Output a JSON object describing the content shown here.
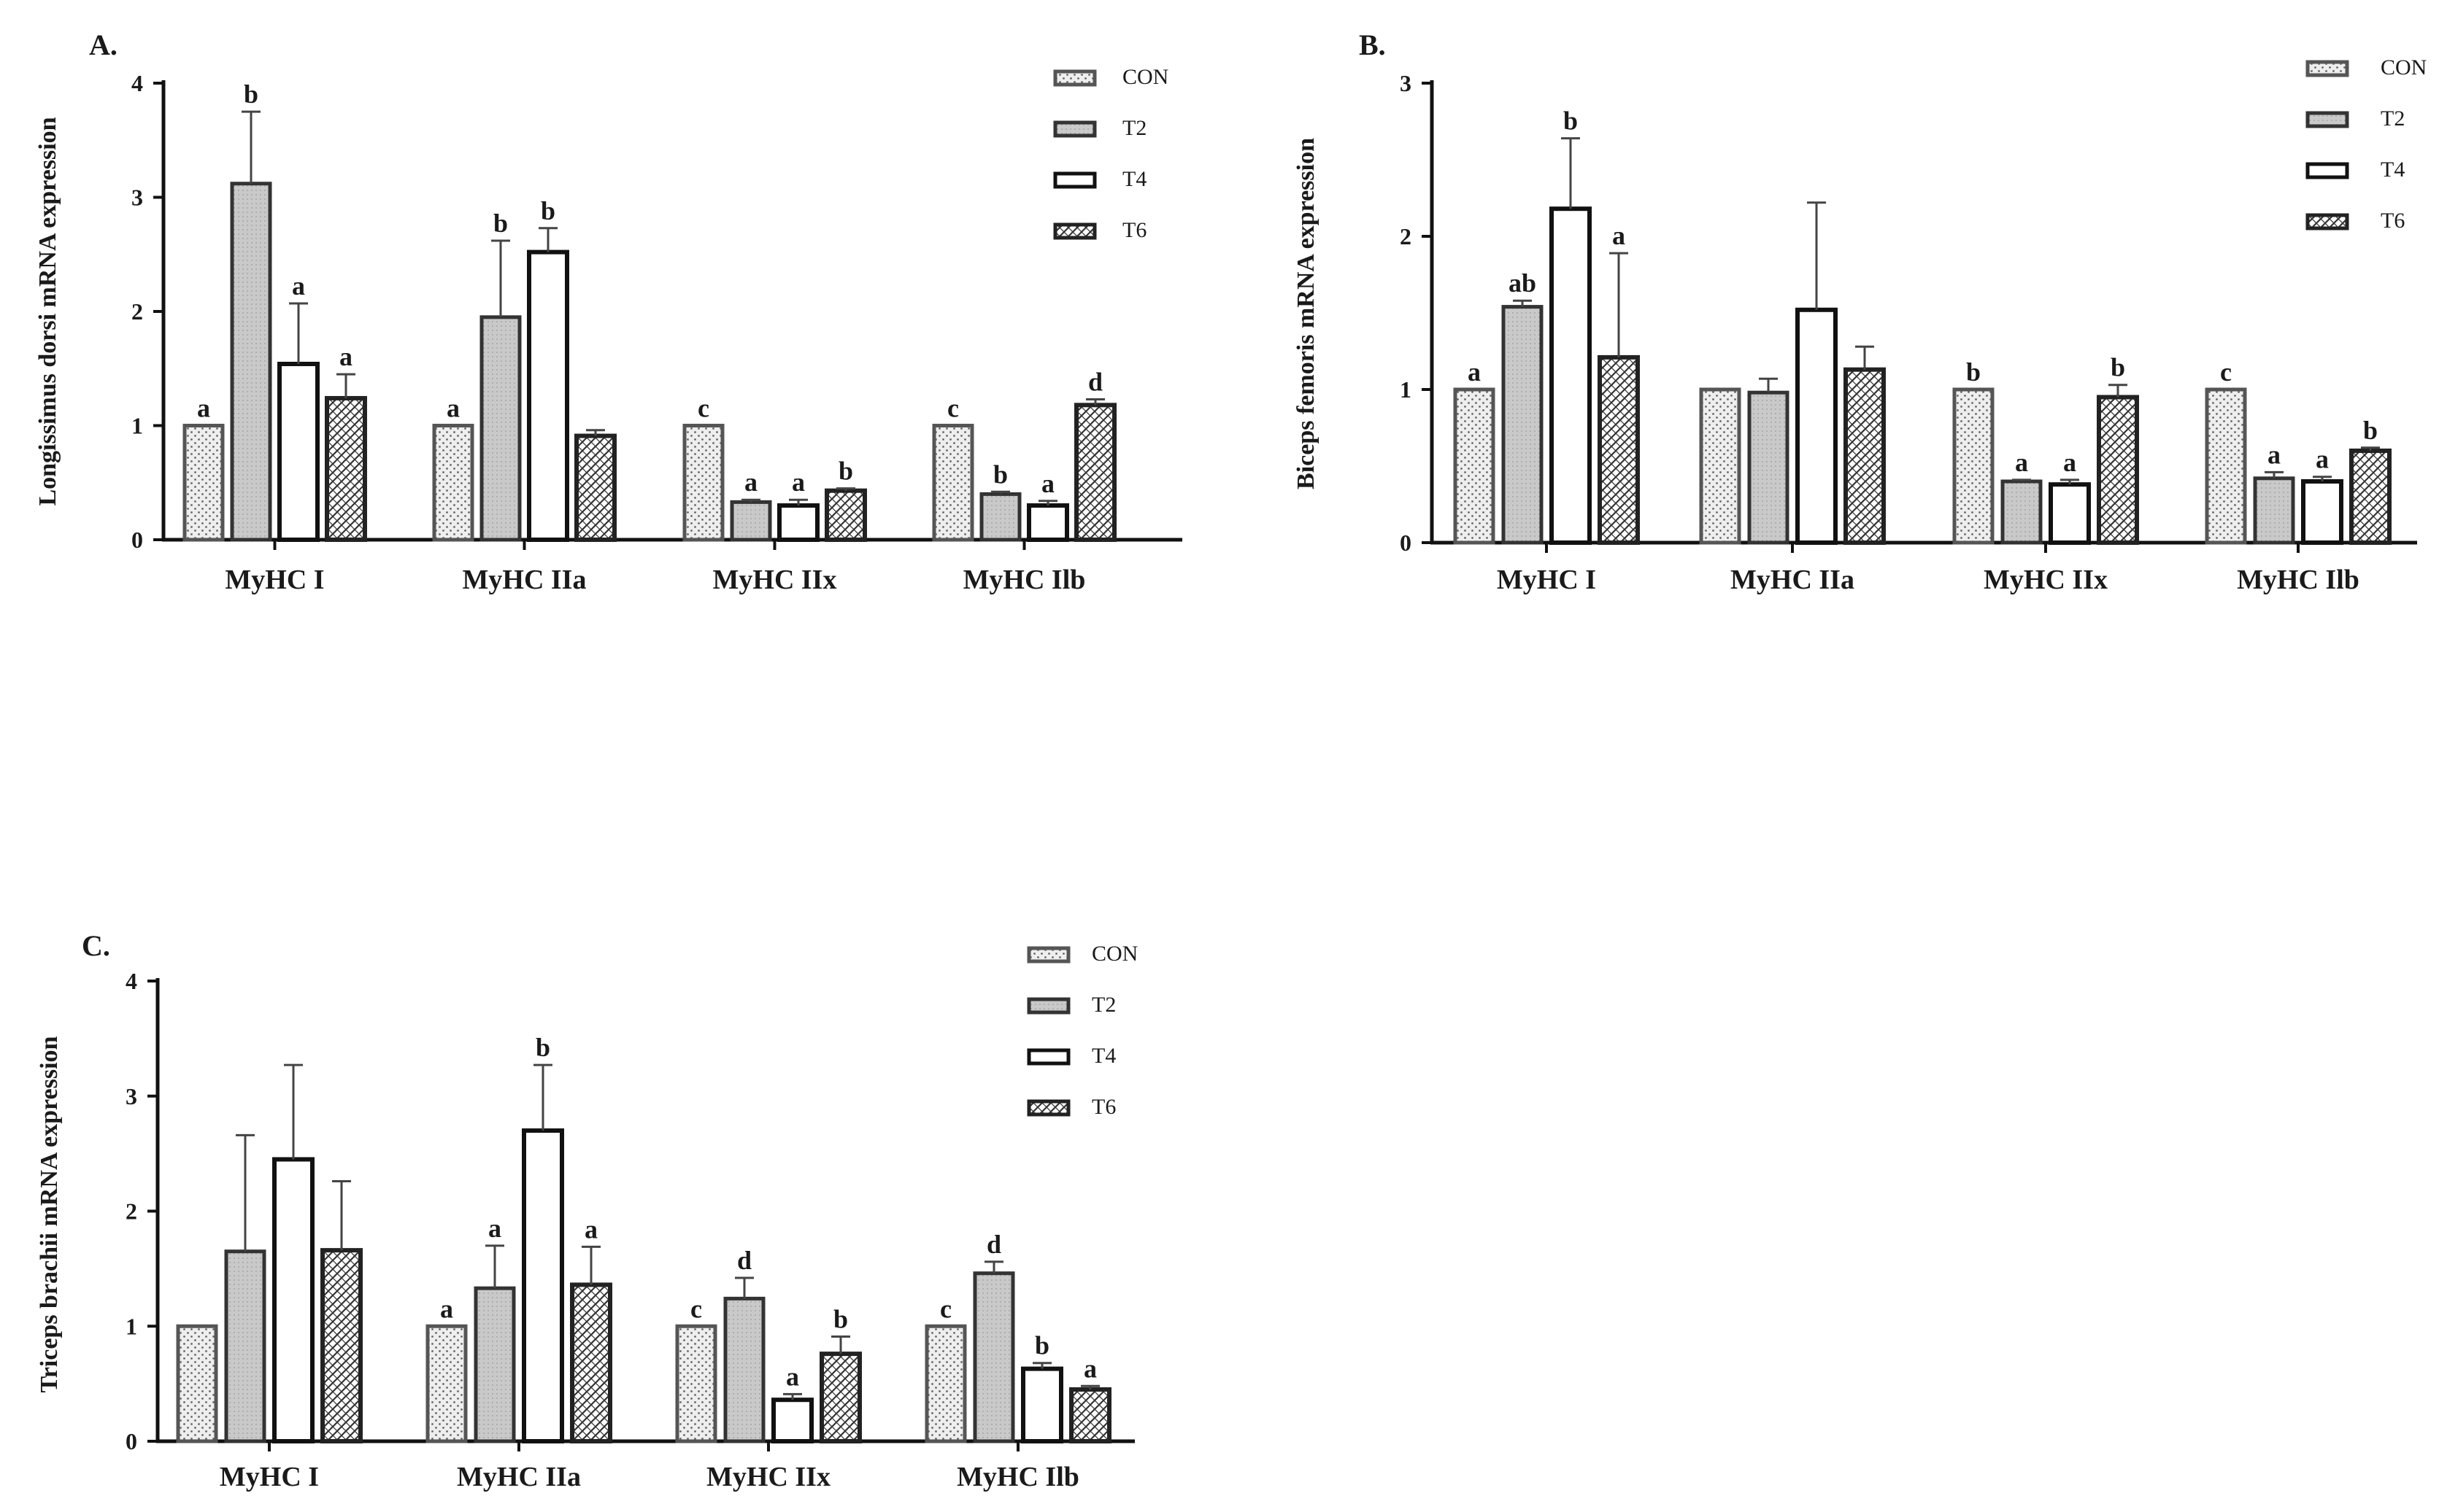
{
  "chart_data": [
    {
      "type": "bar",
      "panel_label": "A.",
      "ylabel": "Longissimus dorsi mRNA expression",
      "xlabel": "",
      "ylim": [
        0,
        4
      ],
      "yticks": [
        "0",
        "1",
        "2",
        "3",
        "4"
      ],
      "categories": [
        "MyHC I",
        "MyHC IIa",
        "MyHC IIx",
        "MyHC Ilb"
      ],
      "series": [
        {
          "name": "CON",
          "pattern": "dots",
          "values": [
            1.0,
            1.0,
            1.0,
            1.0
          ],
          "errors": [
            0,
            0,
            0,
            0
          ],
          "letters": [
            "a",
            "a",
            "c",
            "c"
          ]
        },
        {
          "name": "T2",
          "pattern": "gray",
          "values": [
            3.12,
            1.95,
            0.33,
            0.4
          ],
          "errors": [
            0.63,
            0.67,
            0.02,
            0.02
          ],
          "letters": [
            "b",
            "b",
            "a",
            "b"
          ]
        },
        {
          "name": "T4",
          "pattern": "white",
          "values": [
            1.54,
            2.52,
            0.3,
            0.3
          ],
          "errors": [
            0.53,
            0.21,
            0.05,
            0.04
          ],
          "letters": [
            "a",
            "b",
            "a",
            "a"
          ]
        },
        {
          "name": "T6",
          "pattern": "hatch",
          "values": [
            1.24,
            0.91,
            0.43,
            1.18
          ],
          "errors": [
            0.21,
            0.05,
            0.02,
            0.05
          ],
          "letters": [
            "a",
            "",
            "b",
            "d"
          ]
        }
      ],
      "legend": [
        "CON",
        "T2",
        "T4",
        "T6"
      ],
      "legend_position": "top-right"
    },
    {
      "type": "bar",
      "panel_label": "B.",
      "ylabel": "Biceps femoris mRNA expression",
      "xlabel": "",
      "ylim": [
        0,
        3
      ],
      "yticks": [
        "0",
        "1",
        "2",
        "3"
      ],
      "categories": [
        "MyHC I",
        "MyHC IIa",
        "MyHC IIx",
        "MyHC Ilb"
      ],
      "series": [
        {
          "name": "CON",
          "pattern": "dots",
          "values": [
            1.0,
            1.0,
            1.0,
            1.0
          ],
          "errors": [
            0,
            0,
            0,
            0
          ],
          "letters": [
            "a",
            "",
            "b",
            "c"
          ]
        },
        {
          "name": "T2",
          "pattern": "gray",
          "values": [
            1.54,
            0.98,
            0.4,
            0.42
          ],
          "errors": [
            0.04,
            0.09,
            0.01,
            0.04
          ],
          "letters": [
            "ab",
            "",
            "a",
            "a"
          ]
        },
        {
          "name": "T4",
          "pattern": "white",
          "values": [
            2.18,
            1.52,
            0.38,
            0.4
          ],
          "errors": [
            0.46,
            0.7,
            0.03,
            0.03
          ],
          "letters": [
            "b",
            "",
            "a",
            "a"
          ]
        },
        {
          "name": "T6",
          "pattern": "hatch",
          "values": [
            1.21,
            1.13,
            0.95,
            0.6
          ],
          "errors": [
            0.68,
            0.15,
            0.08,
            0.02
          ],
          "letters": [
            "a",
            "",
            "b",
            "b"
          ]
        }
      ],
      "legend": [
        "CON",
        "T2",
        "T4",
        "T6"
      ],
      "legend_position": "top-right"
    },
    {
      "type": "bar",
      "panel_label": "C.",
      "ylabel": "Triceps brachii mRNA expression",
      "xlabel": "",
      "ylim": [
        0,
        4
      ],
      "yticks": [
        "0",
        "1",
        "2",
        "3",
        "4"
      ],
      "categories": [
        "MyHC I",
        "MyHC IIa",
        "MyHC IIx",
        "MyHC Ilb"
      ],
      "series": [
        {
          "name": "CON",
          "pattern": "dots",
          "values": [
            1.0,
            1.0,
            1.0,
            1.0
          ],
          "errors": [
            0,
            0,
            0,
            0
          ],
          "letters": [
            "",
            "a",
            "c",
            "c"
          ]
        },
        {
          "name": "T2",
          "pattern": "gray",
          "values": [
            1.65,
            1.33,
            1.24,
            1.46
          ],
          "errors": [
            1.01,
            0.37,
            0.18,
            0.1
          ],
          "letters": [
            "",
            "a",
            "d",
            "d"
          ]
        },
        {
          "name": "T4",
          "pattern": "white",
          "values": [
            2.45,
            2.7,
            0.36,
            0.63
          ],
          "errors": [
            0.82,
            0.57,
            0.05,
            0.05
          ],
          "letters": [
            "",
            "b",
            "a",
            "b"
          ]
        },
        {
          "name": "T6",
          "pattern": "hatch",
          "values": [
            1.66,
            1.36,
            0.76,
            0.45
          ],
          "errors": [
            0.6,
            0.33,
            0.15,
            0.03
          ],
          "letters": [
            "",
            "a",
            "b",
            "a"
          ]
        }
      ],
      "legend": [
        "CON",
        "T2",
        "T4",
        "T6"
      ],
      "legend_position": "top-right"
    }
  ]
}
